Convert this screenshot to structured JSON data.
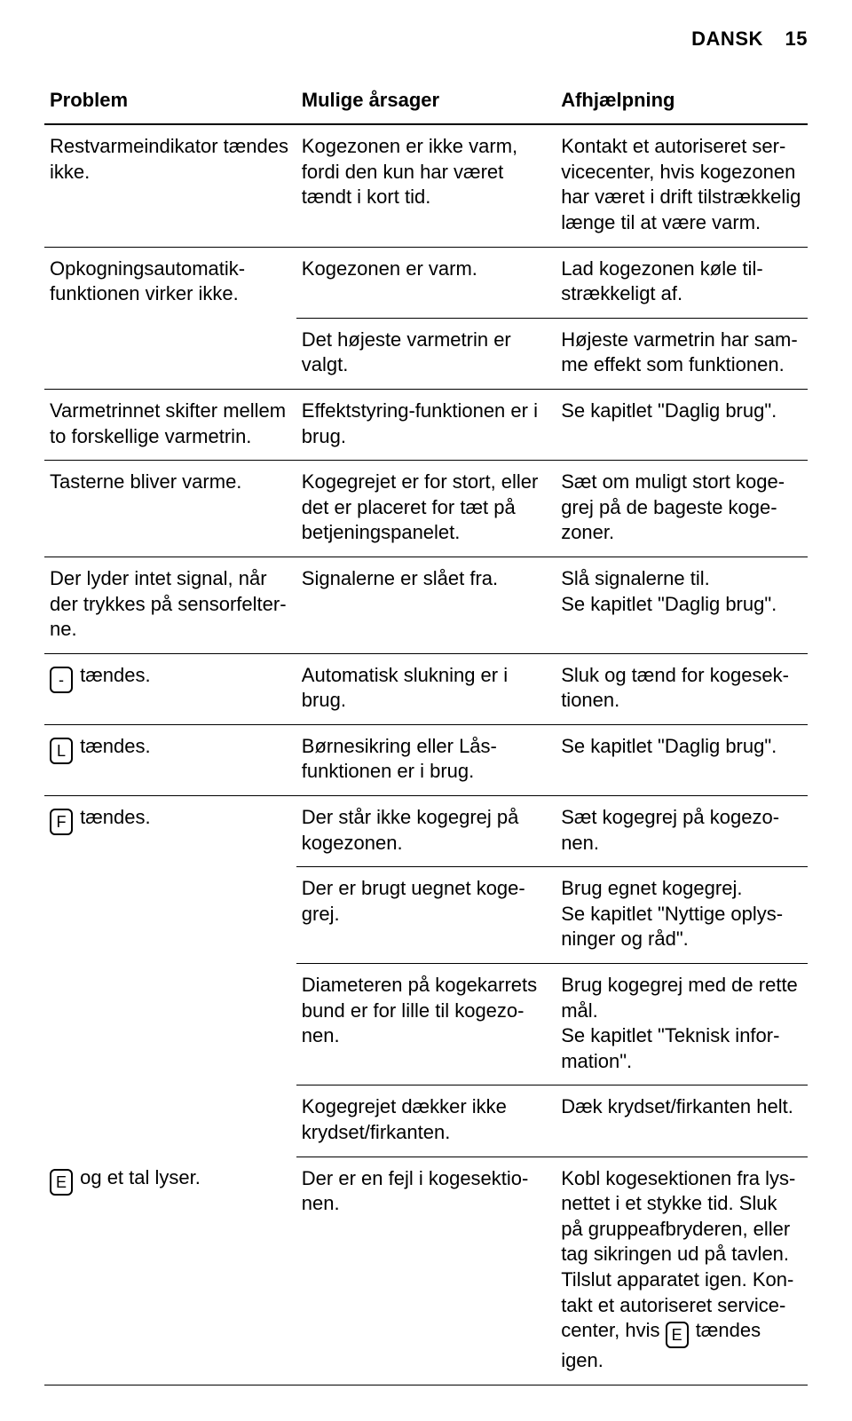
{
  "header": {
    "lang": "DANSK",
    "page": "15"
  },
  "table": {
    "headers": [
      "Problem",
      "Mulige årsager",
      "Afhjælpning"
    ],
    "rows": [
      {
        "problem": "Restvarmeindikator tæn­des ikke.",
        "cause": "Kogezonen er ikke varm, fordi den kun har været tændt i kort tid.",
        "remedy": "Kontakt et autoriseret ser­vicecenter, hvis kogezonen har været i drift tilstrække­lig længe til at være varm."
      },
      {
        "problem": "Opkogningsautomatik­funktionen virker ikke.",
        "cause": "Kogezonen er varm.",
        "remedy": "Lad kogezonen køle til­strækkeligt af."
      },
      {
        "problem": "",
        "cause": "Det højeste varmetrin er valgt.",
        "remedy": "Højeste varmetrin har sam­me effekt som funktionen."
      },
      {
        "problem": "Varmetrinnet skifter mel­lem to forskellige varme­trin.",
        "cause": "Effektstyring-funktionen er i brug.",
        "remedy": "Se kapitlet \"Daglig brug\"."
      },
      {
        "problem": "Tasterne bliver varme.",
        "cause": "Kogegrejet er for stort, eller det er placeret for tæt på betjeningspanelet.",
        "remedy": "Sæt om muligt stort koge­grej på de bageste koge­zoner."
      },
      {
        "problem": "Der lyder intet signal, når der trykkes på sensorfelter­ne.",
        "cause": "Signalerne er slået fra.",
        "remedy": "Slå signalerne til.\nSe kapitlet \"Daglig brug\"."
      },
      {
        "problem_symbol": "-",
        "problem_suffix": " tændes.",
        "cause": "Automatisk slukning er i brug.",
        "remedy": "Sluk og tænd for kogesek­tionen."
      },
      {
        "problem_symbol": "L",
        "problem_suffix": " tændes.",
        "cause": "Børnesikring eller Lås­funktionen er i brug.",
        "remedy": "Se kapitlet \"Daglig brug\"."
      },
      {
        "problem_symbol": "F",
        "problem_suffix": " tændes.",
        "cause": "Der står ikke kogegrej på kogezonen.",
        "remedy": "Sæt kogegrej på kogezo­nen."
      },
      {
        "problem": "",
        "cause": "Der er brugt uegnet koge­grej.",
        "remedy": "Brug egnet kogegrej.\nSe kapitlet \"Nyttige oplys­ninger og råd\"."
      },
      {
        "problem": "",
        "cause": "Diameteren på kogekarrets bund er for lille til kogezo­nen.",
        "remedy": "Brug kogegrej med de ret­te mål.\nSe kapitlet \"Teknisk infor­mation\"."
      },
      {
        "problem": "",
        "cause": "Kogegrejet dækker ikke krydset/firkanten.",
        "remedy": "Dæk krydset/firkanten helt."
      },
      {
        "problem_symbol": "E",
        "problem_suffix": " og et tal lyser.",
        "cause": "Der er en fejl i kogesektio­nen.",
        "remedy_prefix": "Kobl kogesektionen fra lys­nettet i et stykke tid. Sluk på gruppeafbryderen, eller tag sikringen ud på tavlen. Tilslut apparatet igen. Kon­takt et autoriseret service­center, hvis ",
        "remedy_symbol": "E",
        "remedy_suffix": " tændes igen."
      }
    ]
  }
}
